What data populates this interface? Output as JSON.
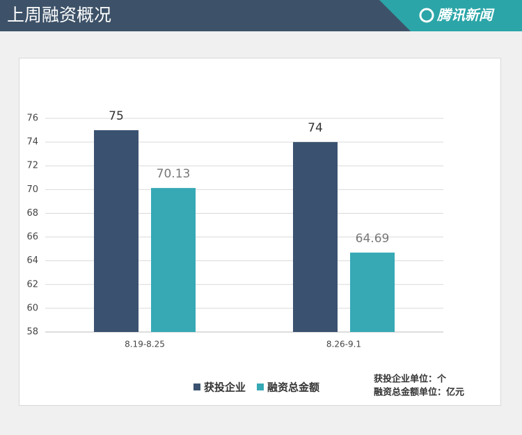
{
  "header": {
    "title": "上周融资概况",
    "brand": "腾讯新闻"
  },
  "chart_data": {
    "type": "bar",
    "categories": [
      "8.19-8.25",
      "8.26-9.1"
    ],
    "series": [
      {
        "name": "获投企业",
        "color": "#3a5270",
        "values": [
          75,
          74
        ]
      },
      {
        "name": "融资总金额",
        "color": "#36a9b5",
        "values": [
          70.13,
          64.69
        ]
      }
    ],
    "ylim": [
      58,
      76
    ],
    "yticks": [
      58,
      60,
      62,
      64,
      66,
      68,
      70,
      72,
      74,
      76
    ],
    "grid": true,
    "legend": "bottom",
    "notes": [
      "获投企业单位：个",
      "融资总金额单位：亿元"
    ]
  }
}
